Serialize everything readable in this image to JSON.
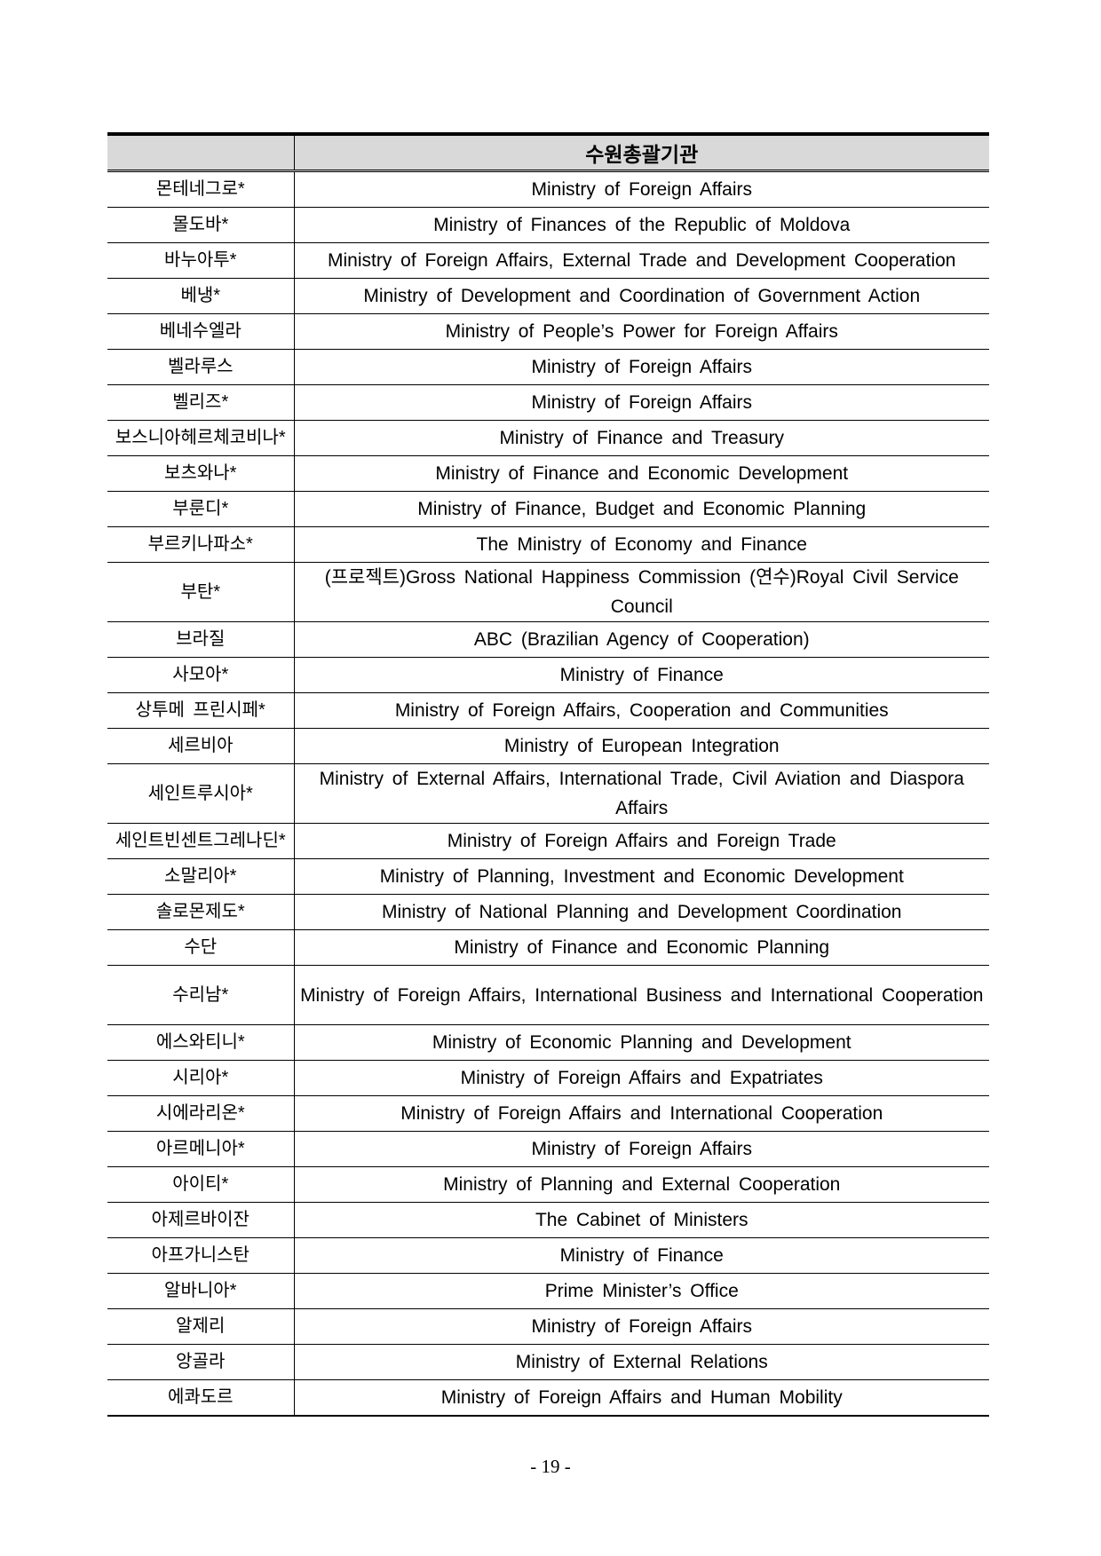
{
  "table": {
    "headers": [
      "",
      "수원총괄기관"
    ],
    "rows": [
      {
        "country": "몬테네그로*",
        "agency": "Ministry of Foreign Affairs"
      },
      {
        "country": "몰도바*",
        "agency": "Ministry of Finances of the Republic of Moldova"
      },
      {
        "country": "바누아투*",
        "agency": "Ministry of Foreign Affairs, External Trade and Development Cooperation"
      },
      {
        "country": "베냉*",
        "agency": "Ministry of Development and Coordination of Government Action"
      },
      {
        "country": "베네수엘라",
        "agency": "Ministry of People’s Power for Foreign Affairs"
      },
      {
        "country": "벨라루스",
        "agency": "Ministry of Foreign Affairs"
      },
      {
        "country": "벨리즈*",
        "agency": "Ministry of Foreign Affairs"
      },
      {
        "country": "보스니아헤르체코비나*",
        "agency": "Ministry of Finance and Treasury"
      },
      {
        "country": "보츠와나*",
        "agency": "Ministry of Finance and Economic Development"
      },
      {
        "country": "부룬디*",
        "agency": "Ministry of Finance, Budget and Economic Planning"
      },
      {
        "country": "부르키나파소*",
        "agency": "The Ministry of Economy and Finance"
      },
      {
        "country": "부탄*",
        "agency": "(프로젝트)Gross National Happiness Commission (연수)Royal Civil Service Council",
        "double": true
      },
      {
        "country": "브라질",
        "agency": "ABC (Brazilian Agency of Cooperation)"
      },
      {
        "country": "사모아*",
        "agency": "Ministry of Finance"
      },
      {
        "country": "상투메 프린시페*",
        "agency": "Ministry of Foreign Affairs, Cooperation and Communities"
      },
      {
        "country": "세르비아",
        "agency": "Ministry of European Integration"
      },
      {
        "country": "세인트루시아*",
        "agency": "Ministry of External Affairs, International Trade, Civil Aviation and Diaspora Affairs",
        "double": true
      },
      {
        "country": "세인트빈센트그레나딘*",
        "agency": "Ministry of Foreign Affairs and Foreign Trade"
      },
      {
        "country": "소말리아*",
        "agency": "Ministry of Planning, Investment and Economic Development"
      },
      {
        "country": "솔로몬제도*",
        "agency": "Ministry of National Planning and Development Coordination"
      },
      {
        "country": "수단",
        "agency": "Ministry of Finance and Economic Planning"
      },
      {
        "country": "수리남*",
        "agency": "Ministry of Foreign Affairs, International Business and International Cooperation",
        "double": true
      },
      {
        "country": "에스와티니*",
        "agency": "Ministry of Economic Planning and Development"
      },
      {
        "country": "시리아*",
        "agency": "Ministry of Foreign Affairs and Expatriates"
      },
      {
        "country": "시에라리온*",
        "agency": "Ministry of Foreign Affairs and International Cooperation"
      },
      {
        "country": "아르메니아*",
        "agency": "Ministry of Foreign Affairs"
      },
      {
        "country": "아이티*",
        "agency": "Ministry of Planning and External Cooperation"
      },
      {
        "country": "아제르바이잔",
        "agency": "The Cabinet of Ministers"
      },
      {
        "country": "아프가니스탄",
        "agency": "Ministry of Finance"
      },
      {
        "country": "알바니아*",
        "agency": "Prime Minister’s Office"
      },
      {
        "country": "알제리",
        "agency": "Ministry of Foreign Affairs"
      },
      {
        "country": "앙골라",
        "agency": "Ministry of External Relations"
      },
      {
        "country": "에콰도르",
        "agency": "Ministry of Foreign Affairs and Human Mobility"
      }
    ]
  },
  "page_number": "- 19 -"
}
